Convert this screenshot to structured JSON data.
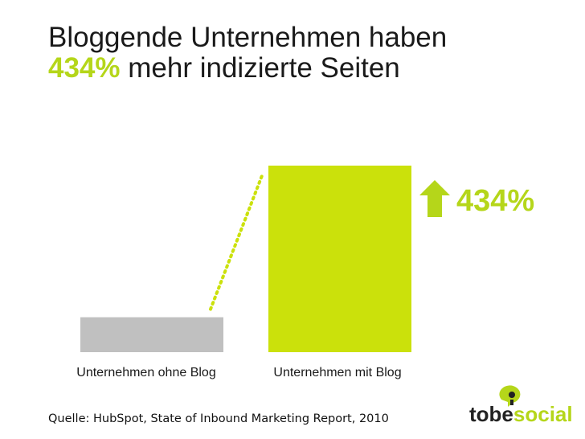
{
  "headline": {
    "line1": "Bloggende Unternehmen haben",
    "accent": "434%",
    "line2_rest": " mehr indizierte Seiten"
  },
  "chart_data": {
    "type": "bar",
    "categories": [
      "Unternehmen ohne Blog",
      "Unternehmen mit Blog"
    ],
    "values": [
      100,
      534
    ],
    "colors": [
      "#c0c0c0",
      "#cbe10b"
    ],
    "annotation": "434%",
    "annotation_icon": "up-arrow-icon",
    "accent_color": "#b5d61a"
  },
  "source": "Quelle: HubSpot, State of Inbound Marketing Report,  2010",
  "logo": {
    "part1": "tobe",
    "part2": "social",
    "icon": "speech-bubble-icon",
    "dark_color": "#222222",
    "accent_color": "#b5d61a"
  }
}
